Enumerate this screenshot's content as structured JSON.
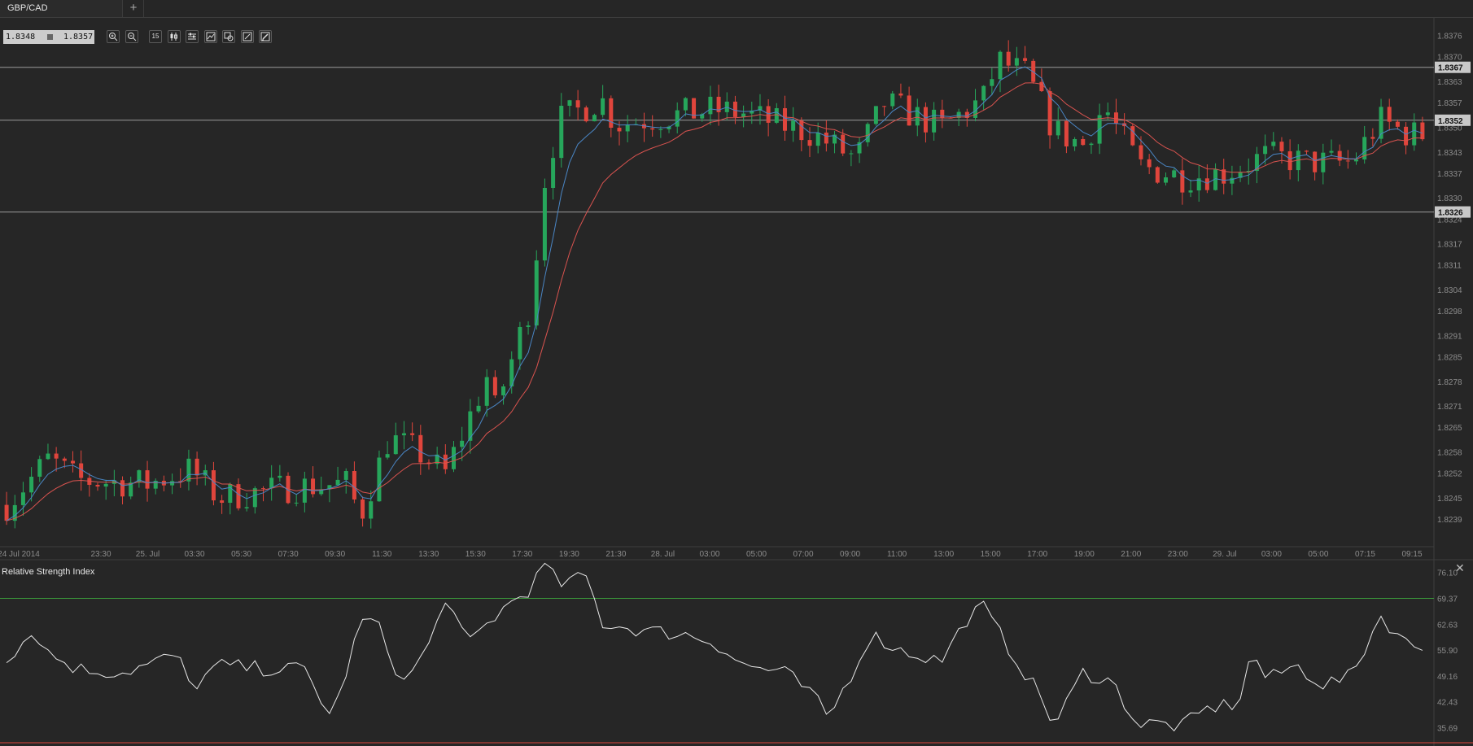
{
  "app": {
    "tab_label": "GBP/CAD",
    "add_tab": "+"
  },
  "quote": {
    "bid": "1.8348",
    "ask": "1.8357"
  },
  "toolbar": {
    "items": [
      {
        "icon": "zoom-in-icon"
      },
      {
        "icon": "zoom-out-icon"
      },
      {
        "icon": "timeframe-icon",
        "label": "15"
      },
      {
        "icon": "candlestick-type-icon"
      },
      {
        "icon": "indicators-icon"
      },
      {
        "icon": "chart-settings-icon"
      },
      {
        "icon": "objects-icon"
      },
      {
        "icon": "draw-line-icon"
      },
      {
        "icon": "draw-pen-icon"
      }
    ]
  },
  "rsi_panel": {
    "title": "Relative Strength Index",
    "close": "✕"
  },
  "colors": {
    "background": "#262626",
    "bull": "#26a65b",
    "bear": "#e0453c",
    "ema_fast": "#4a86c5",
    "ema_slow": "#d9534f",
    "rsi_line": "#e8e8e8",
    "rsi_level": "#3b9b3b",
    "hline": "#b8b8b8"
  },
  "chart_data": [
    {
      "type": "candlestick",
      "symbol": "GBP/CAD",
      "ylim": [
        1.8233,
        1.8381
      ],
      "y_ticks": [
        "1.8376",
        "1.8370",
        "1.8363",
        "1.8357",
        "1.8350",
        "1.8343",
        "1.8337",
        "1.8330",
        "1.8324",
        "1.8317",
        "1.8311",
        "1.8304",
        "1.8298",
        "1.8291",
        "1.8285",
        "1.8278",
        "1.8271",
        "1.8265",
        "1.8258",
        "1.8252",
        "1.8245",
        "1.8239"
      ],
      "x_ticks": [
        "24 Jul 2014",
        "23:30",
        "25. Jul",
        "03:30",
        "05:30",
        "07:30",
        "09:30",
        "11:30",
        "13:30",
        "15:30",
        "17:30",
        "19:30",
        "21:30",
        "28. Jul",
        "03:00",
        "05:00",
        "07:00",
        "09:00",
        "11:00",
        "13:00",
        "15:00",
        "17:00",
        "19:00",
        "21:00",
        "23:00",
        "29. Jul",
        "03:00",
        "05:00",
        "07:15",
        "09:15"
      ],
      "horizontal_lines": [
        {
          "value": 1.8367,
          "label": "1.8367"
        },
        {
          "value": 1.8352,
          "label": "1.8352"
        },
        {
          "value": 1.8326,
          "label": "1.8326"
        }
      ],
      "close_anchors": [
        {
          "t": 0,
          "c": 1.8243
        },
        {
          "t": 0.03,
          "c": 1.8256
        },
        {
          "t": 0.05,
          "c": 1.825
        },
        {
          "t": 0.1,
          "c": 1.8249
        },
        {
          "t": 0.13,
          "c": 1.8253
        },
        {
          "t": 0.15,
          "c": 1.8245
        },
        {
          "t": 0.2,
          "c": 1.8248
        },
        {
          "t": 0.24,
          "c": 1.8249
        },
        {
          "t": 0.25,
          "c": 1.824
        },
        {
          "t": 0.27,
          "c": 1.8262
        },
        {
          "t": 0.29,
          "c": 1.8258
        },
        {
          "t": 0.31,
          "c": 1.8252
        },
        {
          "t": 0.34,
          "c": 1.828
        },
        {
          "t": 0.345,
          "c": 1.827
        },
        {
          "t": 0.37,
          "c": 1.83
        },
        {
          "t": 0.38,
          "c": 1.8335
        },
        {
          "t": 0.39,
          "c": 1.8352
        },
        {
          "t": 0.42,
          "c": 1.8358
        },
        {
          "t": 0.43,
          "c": 1.8351
        },
        {
          "t": 0.5,
          "c": 1.8355
        },
        {
          "t": 0.52,
          "c": 1.8354
        },
        {
          "t": 0.57,
          "c": 1.8348
        },
        {
          "t": 0.6,
          "c": 1.8341
        },
        {
          "t": 0.62,
          "c": 1.8357
        },
        {
          "t": 0.66,
          "c": 1.835
        },
        {
          "t": 0.69,
          "c": 1.8358
        },
        {
          "t": 0.7,
          "c": 1.8369
        },
        {
          "t": 0.72,
          "c": 1.8365
        },
        {
          "t": 0.74,
          "c": 1.8349
        },
        {
          "t": 0.76,
          "c": 1.8345
        },
        {
          "t": 0.775,
          "c": 1.8356
        },
        {
          "t": 0.8,
          "c": 1.8339
        },
        {
          "t": 0.83,
          "c": 1.8336
        },
        {
          "t": 0.86,
          "c": 1.8337
        },
        {
          "t": 0.89,
          "c": 1.8342
        },
        {
          "t": 0.92,
          "c": 1.834
        },
        {
          "t": 0.95,
          "c": 1.834
        },
        {
          "t": 0.97,
          "c": 1.8352
        },
        {
          "t": 0.99,
          "c": 1.8348
        }
      ],
      "candle_count": 172,
      "ema_fast_period": 5,
      "ema_slow_period": 12
    },
    {
      "type": "line",
      "title": "Relative Strength Index",
      "ylim": [
        32.0,
        79.0
      ],
      "y_ticks": [
        "76.10",
        "69.37",
        "62.63",
        "55.90",
        "49.16",
        "42.43",
        "35.69"
      ],
      "level_line": 69.37,
      "anchors": [
        {
          "t": 0,
          "v": 54
        },
        {
          "t": 0.02,
          "v": 61
        },
        {
          "t": 0.03,
          "v": 55
        },
        {
          "t": 0.05,
          "v": 51
        },
        {
          "t": 0.08,
          "v": 50
        },
        {
          "t": 0.1,
          "v": 52
        },
        {
          "t": 0.12,
          "v": 55
        },
        {
          "t": 0.13,
          "v": 46
        },
        {
          "t": 0.15,
          "v": 52
        },
        {
          "t": 0.18,
          "v": 51
        },
        {
          "t": 0.21,
          "v": 51
        },
        {
          "t": 0.23,
          "v": 38
        },
        {
          "t": 0.25,
          "v": 63
        },
        {
          "t": 0.26,
          "v": 64
        },
        {
          "t": 0.28,
          "v": 47
        },
        {
          "t": 0.3,
          "v": 58
        },
        {
          "t": 0.31,
          "v": 70
        },
        {
          "t": 0.325,
          "v": 57
        },
        {
          "t": 0.34,
          "v": 63
        },
        {
          "t": 0.355,
          "v": 68
        },
        {
          "t": 0.37,
          "v": 72
        },
        {
          "t": 0.38,
          "v": 78
        },
        {
          "t": 0.39,
          "v": 73
        },
        {
          "t": 0.41,
          "v": 75
        },
        {
          "t": 0.42,
          "v": 63
        },
        {
          "t": 0.45,
          "v": 61
        },
        {
          "t": 0.48,
          "v": 60
        },
        {
          "t": 0.5,
          "v": 58
        },
        {
          "t": 0.52,
          "v": 52
        },
        {
          "t": 0.55,
          "v": 50
        },
        {
          "t": 0.57,
          "v": 44
        },
        {
          "t": 0.58,
          "v": 38
        },
        {
          "t": 0.6,
          "v": 52
        },
        {
          "t": 0.61,
          "v": 60
        },
        {
          "t": 0.63,
          "v": 56
        },
        {
          "t": 0.66,
          "v": 53
        },
        {
          "t": 0.68,
          "v": 65
        },
        {
          "t": 0.69,
          "v": 67
        },
        {
          "t": 0.705,
          "v": 58
        },
        {
          "t": 0.73,
          "v": 44
        },
        {
          "t": 0.74,
          "v": 36
        },
        {
          "t": 0.76,
          "v": 50
        },
        {
          "t": 0.78,
          "v": 48
        },
        {
          "t": 0.8,
          "v": 36
        },
        {
          "t": 0.81,
          "v": 37
        },
        {
          "t": 0.83,
          "v": 36
        },
        {
          "t": 0.85,
          "v": 41
        },
        {
          "t": 0.87,
          "v": 42
        },
        {
          "t": 0.88,
          "v": 56
        },
        {
          "t": 0.89,
          "v": 48
        },
        {
          "t": 0.91,
          "v": 52
        },
        {
          "t": 0.93,
          "v": 47
        },
        {
          "t": 0.95,
          "v": 49
        },
        {
          "t": 0.97,
          "v": 65
        },
        {
          "t": 0.99,
          "v": 57
        }
      ],
      "point_count": 172
    }
  ]
}
